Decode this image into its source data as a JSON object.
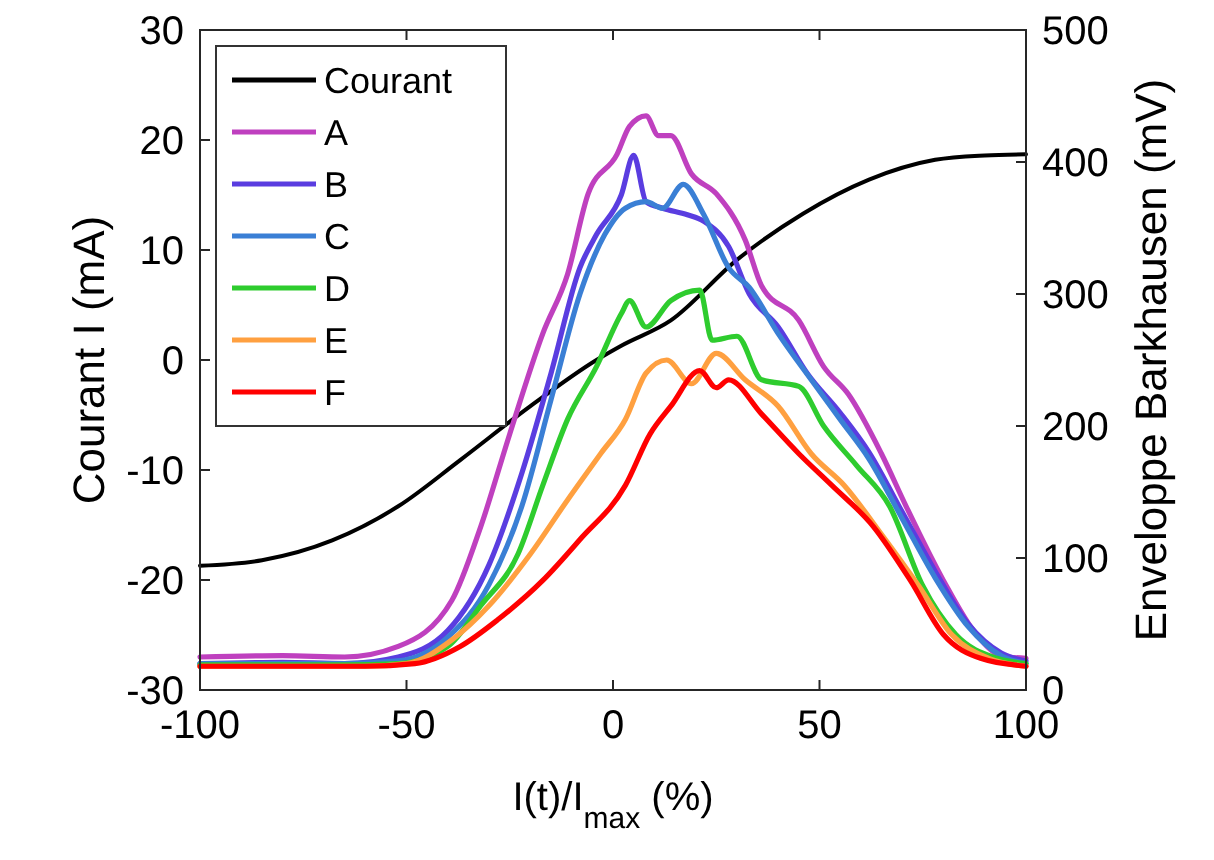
{
  "chart_data": {
    "type": "line",
    "xlabel": "I(t)/I$_{max}$ (%)",
    "ylabel": "Courant I (mA)",
    "y2label": "Enveloppe Barkhausen (mV)",
    "xlim": [
      -100,
      100
    ],
    "xticks": [
      -100,
      -50,
      0,
      50,
      100
    ],
    "ylim": [
      -30,
      30
    ],
    "yticks": [
      -30,
      -20,
      -10,
      0,
      10,
      20,
      30
    ],
    "y2lim": [
      0,
      500
    ],
    "y2ticks": [
      0,
      100,
      200,
      300,
      400,
      500
    ],
    "legend": "top left",
    "series": [
      {
        "name": "Courant",
        "color": "#000000",
        "x": [
          -100,
          -85,
          -68,
          -52,
          -37,
          -20,
          -4,
          2,
          14,
          30,
          46,
          62,
          78,
          90,
          100
        ],
        "values": [
          -18.7,
          -18.2,
          -16.4,
          -13.3,
          -9.1,
          -4.2,
          0,
          1.3,
          3.6,
          9.1,
          13.3,
          16.4,
          18.2,
          18.6,
          18.7
        ]
      },
      {
        "name": "A",
        "color": "#bf40bf",
        "axis": "y2",
        "x": [
          -100,
          -80,
          -65,
          -52,
          -39,
          -32,
          -25,
          -17,
          -11,
          -6,
          1,
          4,
          8,
          11,
          14,
          19,
          25,
          32,
          36,
          45,
          51,
          57,
          65,
          71,
          80,
          88,
          94,
          100
        ],
        "values": [
          25,
          26,
          25,
          33,
          68,
          124,
          194,
          270,
          315,
          376,
          406,
          427,
          435,
          420,
          420,
          391,
          376,
          341,
          306,
          280,
          245,
          224,
          179,
          139,
          83,
          42,
          26,
          24
        ]
      },
      {
        "name": "B",
        "color": "#5a3de0",
        "axis": "y2",
        "x": [
          -100,
          -80,
          -65,
          -52,
          -40,
          -30,
          -22,
          -15,
          -8,
          -4,
          2,
          5,
          8,
          12,
          18,
          22,
          28,
          33,
          40,
          47,
          55,
          62,
          70,
          78,
          86,
          94,
          100
        ],
        "values": [
          20,
          21,
          20,
          25,
          45,
          95,
          165,
          240,
          320,
          345,
          375,
          405,
          370,
          365,
          360,
          355,
          336,
          300,
          275,
          240,
          210,
          180,
          135,
          90,
          50,
          28,
          22
        ]
      },
      {
        "name": "C",
        "color": "#3a7fd5",
        "axis": "y2",
        "x": [
          -100,
          -80,
          -65,
          -52,
          -40,
          -30,
          -22,
          -15,
          -8,
          -2,
          3,
          8,
          12,
          17,
          22,
          28,
          33,
          40,
          48,
          55,
          62,
          70,
          78,
          86,
          94,
          100
        ],
        "values": [
          20,
          20,
          20,
          22,
          40,
          80,
          140,
          220,
          300,
          345,
          365,
          370,
          365,
          383,
          360,
          320,
          305,
          270,
          235,
          205,
          175,
          130,
          85,
          48,
          26,
          20
        ]
      },
      {
        "name": "D",
        "color": "#2ecc2e",
        "axis": "y2",
        "x": [
          -100,
          -80,
          -65,
          -52,
          -40,
          -32,
          -23,
          -17,
          -11,
          -4,
          2,
          4,
          8,
          14,
          21,
          24,
          30,
          36,
          45,
          51,
          59,
          67,
          75,
          83,
          93,
          100
        ],
        "values": [
          19,
          19,
          19,
          20,
          33,
          64,
          103,
          155,
          205,
          245,
          285,
          295,
          275,
          295,
          303,
          265,
          268,
          235,
          230,
          200,
          170,
          139,
          79,
          42,
          24,
          20
        ]
      },
      {
        "name": "E",
        "color": "#ffa040",
        "axis": "y2",
        "x": [
          -100,
          -80,
          -60,
          -50,
          -39,
          -30,
          -20,
          -11,
          -3,
          3,
          8,
          13,
          19,
          25,
          32,
          40,
          48,
          56,
          65,
          74,
          82,
          91,
          100
        ],
        "values": [
          18,
          18,
          18,
          20,
          38,
          64,
          103,
          144,
          179,
          205,
          240,
          250,
          232,
          255,
          235,
          215,
          179,
          155,
          118,
          79,
          42,
          24,
          18
        ]
      },
      {
        "name": "F",
        "color": "#ff0000",
        "axis": "y2",
        "x": [
          -100,
          -60,
          -48,
          -37,
          -28,
          -17,
          -8,
          3,
          9,
          14,
          21,
          25,
          28,
          36,
          45,
          53,
          63,
          72,
          80,
          89,
          100
        ],
        "values": [
          18,
          18,
          20,
          33,
          53,
          83,
          114,
          155,
          194,
          215,
          242,
          229,
          235,
          209,
          179,
          155,
          124,
          83,
          42,
          24,
          18
        ]
      }
    ]
  }
}
